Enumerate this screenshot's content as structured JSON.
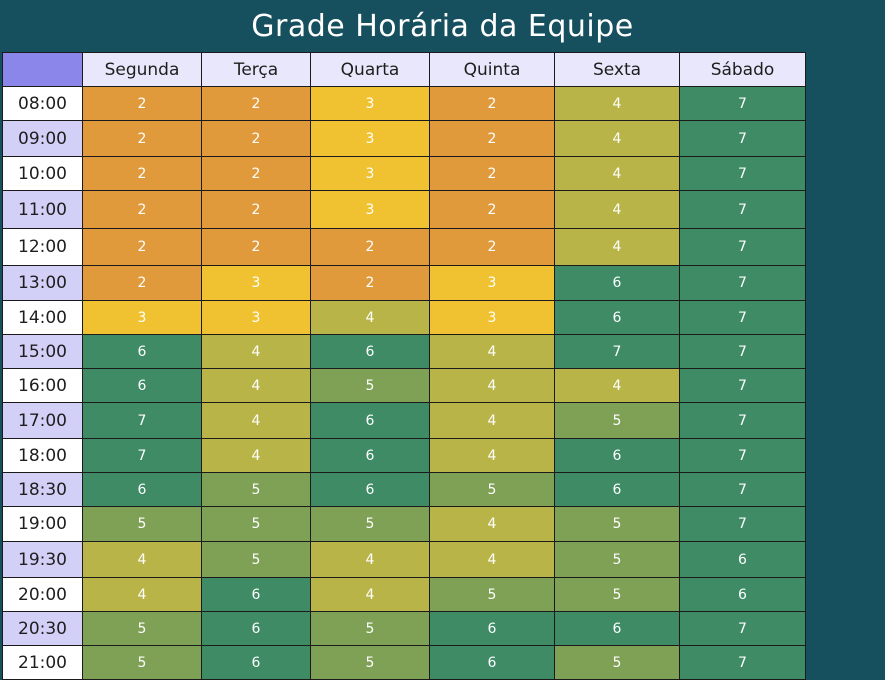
{
  "title": "Grade Horária da Equipe",
  "days": [
    "Segunda",
    "Terça",
    "Quarta",
    "Quinta",
    "Sexta",
    "Sábado"
  ],
  "times": [
    "08:00",
    "09:00",
    "10:00",
    "11:00",
    "12:00",
    "13:00",
    "14:00",
    "15:00",
    "16:00",
    "17:00",
    "18:00",
    "18:30",
    "19:00",
    "19:30",
    "20:00",
    "20:30",
    "21:00"
  ],
  "values": [
    [
      2,
      2,
      3,
      2,
      4,
      7
    ],
    [
      2,
      2,
      3,
      2,
      4,
      7
    ],
    [
      2,
      2,
      3,
      2,
      4,
      7
    ],
    [
      2,
      2,
      3,
      2,
      4,
      7
    ],
    [
      2,
      2,
      2,
      2,
      4,
      7
    ],
    [
      2,
      3,
      2,
      3,
      6,
      7
    ],
    [
      3,
      3,
      4,
      3,
      6,
      7
    ],
    [
      6,
      4,
      6,
      4,
      7,
      7
    ],
    [
      6,
      4,
      5,
      4,
      4,
      7
    ],
    [
      7,
      4,
      6,
      4,
      5,
      7
    ],
    [
      7,
      4,
      6,
      4,
      6,
      7
    ],
    [
      6,
      5,
      6,
      5,
      6,
      7
    ],
    [
      5,
      5,
      5,
      4,
      5,
      7
    ],
    [
      4,
      5,
      4,
      4,
      5,
      6
    ],
    [
      4,
      6,
      4,
      5,
      5,
      6
    ],
    [
      5,
      6,
      5,
      6,
      6,
      7
    ],
    [
      5,
      6,
      5,
      6,
      5,
      7
    ]
  ],
  "colors": {
    "2": "#e09a3c",
    "3": "#f0c232",
    "4": "#b8b447",
    "5": "#7ea155",
    "6": "#3e8b66",
    "7": "#3e8b66",
    "header_bg": "#16505e"
  }
}
